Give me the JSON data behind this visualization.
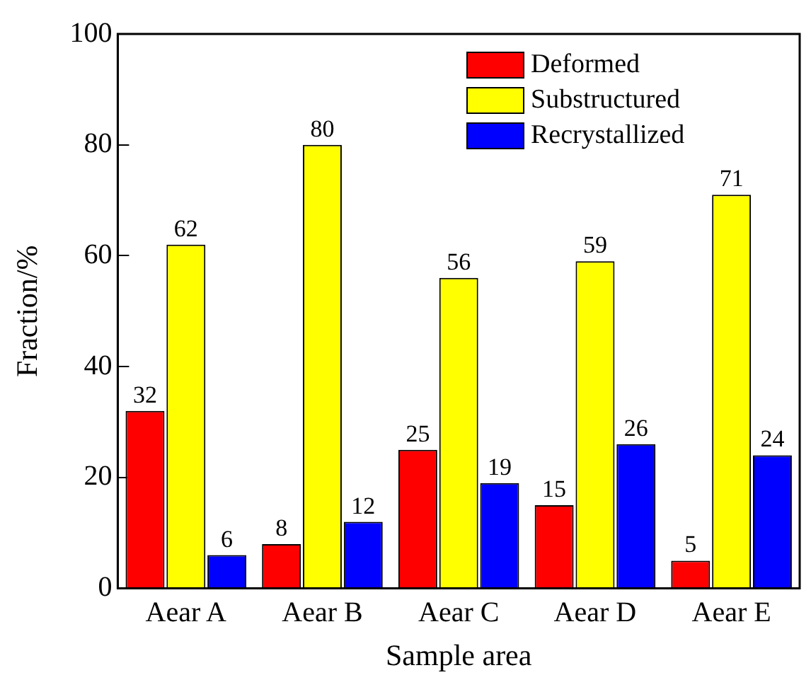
{
  "chart_data": {
    "type": "bar",
    "xlabel": "Sample area",
    "ylabel": "Fraction/%",
    "categories": [
      "Aear A",
      "Aear B",
      "Aear C",
      "Aear D",
      "Aear E"
    ],
    "series": [
      {
        "name": "Deformed",
        "color": "#ff0000",
        "values": [
          32,
          8,
          25,
          15,
          5
        ]
      },
      {
        "name": "Substructured",
        "color": "#ffff00",
        "values": [
          62,
          80,
          56,
          59,
          71
        ]
      },
      {
        "name": "Recrystallized",
        "color": "#0000ff",
        "values": [
          6,
          12,
          19,
          26,
          24
        ]
      }
    ],
    "ylim": [
      0,
      100
    ],
    "yticks": [
      0,
      20,
      40,
      60,
      80,
      100
    ],
    "grid": false,
    "legend": "top right",
    "data_labels": true
  }
}
